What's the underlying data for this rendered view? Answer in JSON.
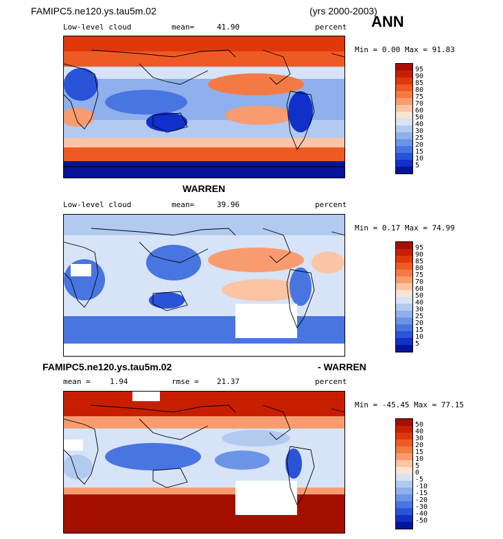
{
  "header": {
    "case_name": "FAMIPC5.ne120.ys.tau5m.02",
    "years": "(yrs 2000-2003)",
    "season": "ANN"
  },
  "panels": [
    {
      "id": "model",
      "title": "",
      "left_label": "Low-level cloud",
      "stat_label": "mean=",
      "stat_value": "41.90",
      "units": "percent",
      "minmax": "Min =   0.00 Max =  91.83",
      "cbar_levels": [
        "95",
        "90",
        "85",
        "80",
        "75",
        "70",
        "60",
        "50",
        "40",
        "30",
        "25",
        "20",
        "15",
        "10",
        "5"
      ],
      "cbar_colors": [
        "#a50f00",
        "#c81e00",
        "#e0380a",
        "#ef5a24",
        "#f47a45",
        "#f89c70",
        "#fbc4a4",
        "#fbe3d3",
        "#d7e3f6",
        "#b2c9f0",
        "#8fb0ec",
        "#6b93e6",
        "#4975e0",
        "#2a53d8",
        "#1030c9",
        "#06149a"
      ]
    },
    {
      "id": "obs",
      "title": "WARREN",
      "left_label": "Low-level cloud",
      "stat_label": "mean=",
      "stat_value": "39.96",
      "units": "percent",
      "minmax": "Min =   0.17 Max =  74.99",
      "cbar_levels": [
        "95",
        "90",
        "85",
        "80",
        "75",
        "70",
        "60",
        "50",
        "40",
        "30",
        "25",
        "20",
        "15",
        "10",
        "5"
      ],
      "cbar_colors": [
        "#a50f00",
        "#c81e00",
        "#e0380a",
        "#ef5a24",
        "#f47a45",
        "#f89c70",
        "#fbc4a4",
        "#fbe3d3",
        "#d7e3f6",
        "#b2c9f0",
        "#8fb0ec",
        "#6b93e6",
        "#4975e0",
        "#2a53d8",
        "#1030c9",
        "#06149a"
      ]
    },
    {
      "id": "diff",
      "title_left": "FAMIPC5.ne120.ys.tau5m.02",
      "title_right": "- WARREN",
      "left_label": "mean =",
      "left_value": "1.94",
      "stat_label": "rmse =",
      "stat_value": "21.37",
      "units": "percent",
      "minmax": "Min = -45.45 Max =  77.15",
      "cbar_levels": [
        "50",
        "40",
        "30",
        "20",
        "15",
        "10",
        "5",
        "0",
        "-5",
        "-10",
        "-15",
        "-20",
        "-30",
        "-40",
        "-50"
      ],
      "cbar_colors": [
        "#a50f00",
        "#c81e00",
        "#e0380a",
        "#ef5a24",
        "#f47a45",
        "#f89c70",
        "#fbc4a4",
        "#fbe3d3",
        "#d7e3f6",
        "#b2c9f0",
        "#8fb0ec",
        "#6b93e6",
        "#4975e0",
        "#2a53d8",
        "#1030c9",
        "#06149a"
      ]
    }
  ]
}
